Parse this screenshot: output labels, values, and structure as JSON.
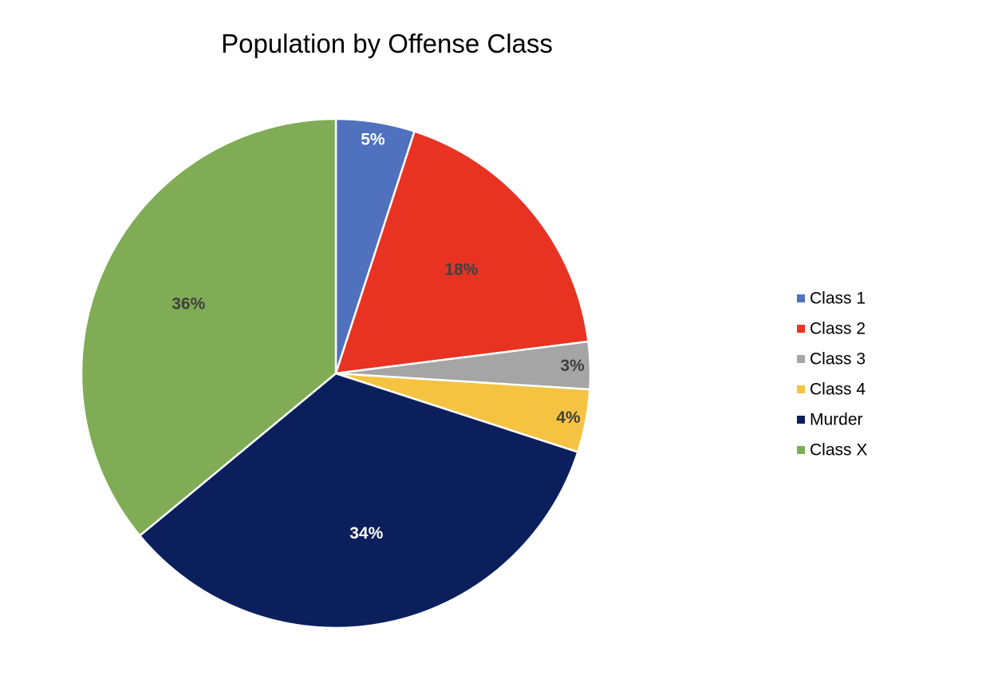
{
  "chart_data": {
    "type": "pie",
    "title": "Population by Offense Class",
    "categories": [
      "Class 1",
      "Class 2",
      "Class 3",
      "Class 4",
      "Murder",
      "Class X"
    ],
    "values": [
      5,
      18,
      3,
      4,
      34,
      36
    ],
    "labels": [
      "5%",
      "18%",
      "3%",
      "4%",
      "34%",
      "36%"
    ],
    "colors": [
      "#4F71BE",
      "#E83323",
      "#A5A5A5",
      "#F5C342",
      "#0B1F5C",
      "#7FAC55"
    ],
    "label_colors": [
      "#FFFFFF",
      "#404040",
      "#404040",
      "#404040",
      "#FFFFFF",
      "#404040"
    ],
    "start_angle_deg": 0,
    "direction": "clockwise",
    "legend_position": "right"
  }
}
